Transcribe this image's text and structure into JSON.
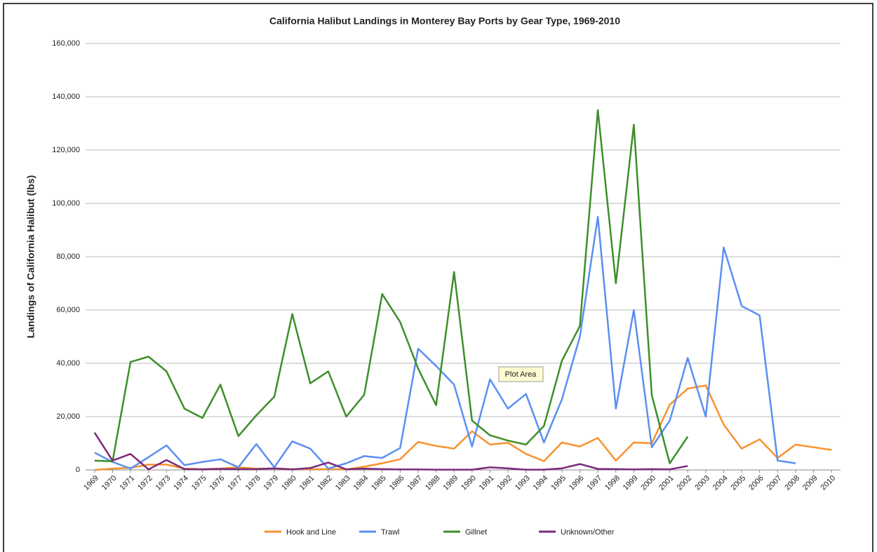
{
  "chart_data": {
    "type": "line",
    "title": "California Halibut Landings in Monterey Bay Ports by Gear Type, 1969-2010",
    "y_label": "Landings of California Halibut (lbs)",
    "tooltip": "Plot Area",
    "categories": [
      "1969",
      "1970",
      "1971",
      "1972",
      "1973",
      "1974",
      "1975",
      "1976",
      "1977",
      "1978",
      "1979",
      "1980",
      "1981",
      "1982",
      "1983",
      "1984",
      "1985",
      "1986",
      "1987",
      "1988",
      "1989",
      "1990",
      "1991",
      "1992",
      "1993",
      "1994",
      "1995",
      "1996",
      "1997",
      "1998",
      "1999",
      "2000",
      "2001",
      "2002",
      "2003",
      "2004",
      "2005",
      "2006",
      "2007",
      "2008",
      "2009",
      "2010"
    ],
    "ylim": [
      0,
      160000
    ],
    "yticks": [
      0,
      {
        "value": 20000,
        "label": "20,000"
      },
      {
        "value": 40000,
        "label": "40,000"
      },
      {
        "value": 60000,
        "label": "60,000"
      },
      {
        "value": 80000,
        "label": "80,000"
      },
      {
        "value": 100000,
        "label": "100,000"
      },
      {
        "value": 120000,
        "label": "120,000"
      },
      {
        "value": 140000,
        "label": "140,000"
      },
      {
        "value": 160000,
        "label": "160,000"
      }
    ],
    "grid": true,
    "legend": "bottom",
    "series": [
      {
        "name": "Hook and Line",
        "color": "#f7922e",
        "values": [
          0,
          500,
          800,
          2000,
          2000,
          500,
          300,
          500,
          1000,
          500,
          500,
          300,
          300,
          300,
          200,
          1200,
          2500,
          4000,
          10500,
          9000,
          8000,
          14500,
          9500,
          10200,
          6000,
          3300,
          10300,
          8800,
          12000,
          3500,
          10300,
          10000,
          24500,
          30500,
          31700,
          17000,
          8000,
          11500,
          4500,
          9500,
          8500,
          7500
        ]
      },
      {
        "name": "Trawl",
        "color": "#5b8ff2",
        "values": [
          6500,
          3000,
          500,
          4800,
          9200,
          1800,
          3000,
          4000,
          1000,
          9700,
          1000,
          10700,
          8000,
          500,
          2500,
          5200,
          4500,
          8200,
          45500,
          39000,
          32000,
          8800,
          34000,
          23000,
          28500,
          10300,
          26500,
          50000,
          95000,
          23000,
          60000,
          8500,
          18500,
          42000,
          20000,
          83500,
          61500,
          58000,
          3500,
          2500,
          null,
          null
        ]
      },
      {
        "name": "Gillnet",
        "color": "#3c8f2a",
        "values": [
          3500,
          3200,
          40500,
          42500,
          37000,
          23000,
          19500,
          32000,
          12700,
          20500,
          27500,
          58500,
          32500,
          37000,
          20000,
          28200,
          66000,
          55500,
          38000,
          24300,
          74300,
          18500,
          13000,
          11000,
          9500,
          16500,
          41000,
          54000,
          135000,
          70000,
          129500,
          28000,
          2500,
          12500,
          null,
          null,
          null,
          null,
          null,
          null,
          null,
          null
        ]
      },
      {
        "name": "Unknown/Other",
        "color": "#7b2a7d",
        "values": [
          14000,
          3500,
          6000,
          200,
          3700,
          300,
          200,
          400,
          300,
          300,
          600,
          200,
          700,
          2800,
          200,
          500,
          300,
          200,
          200,
          100,
          100,
          100,
          1000,
          600,
          100,
          100,
          600,
          2200,
          400,
          300,
          200,
          300,
          200,
          1500,
          null,
          null,
          null,
          null,
          null,
          null,
          null,
          null
        ]
      }
    ]
  }
}
